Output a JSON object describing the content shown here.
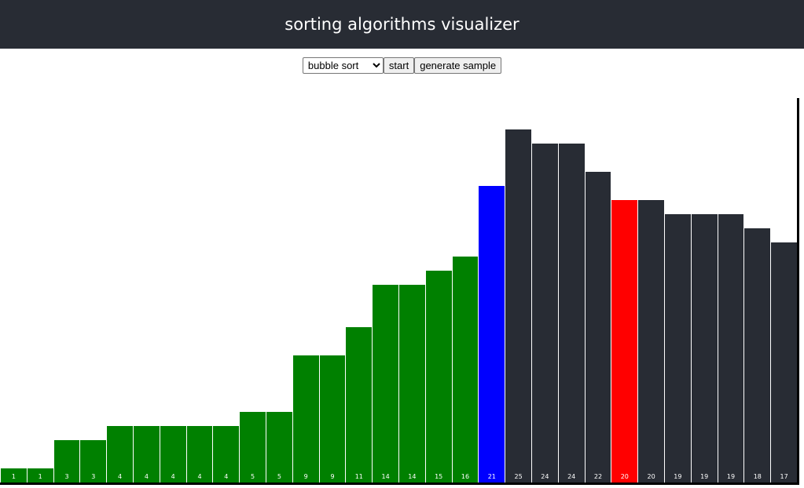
{
  "header": {
    "title": "sorting algorithms visualizer"
  },
  "controls": {
    "algorithm_selected": "bubble sort",
    "algorithm_options": [
      "bubble sort"
    ],
    "start_label": "start",
    "generate_label": "generate sample"
  },
  "colors": {
    "header_bg": "#282c34",
    "sorted": "#008000",
    "unsorted": "#282c34",
    "current": "#0000ff",
    "compare": "#ff0000"
  },
  "array": {
    "values": [
      1,
      1,
      3,
      3,
      4,
      4,
      4,
      4,
      4,
      5,
      5,
      9,
      9,
      11,
      14,
      14,
      15,
      16,
      21,
      25,
      24,
      24,
      22,
      20,
      20,
      19,
      19,
      19,
      18,
      17
    ],
    "states": [
      "sorted",
      "sorted",
      "sorted",
      "sorted",
      "sorted",
      "sorted",
      "sorted",
      "sorted",
      "sorted",
      "sorted",
      "sorted",
      "sorted",
      "sorted",
      "sorted",
      "sorted",
      "sorted",
      "sorted",
      "sorted",
      "current",
      "unsorted",
      "unsorted",
      "unsorted",
      "unsorted",
      "compare",
      "unsorted",
      "unsorted",
      "unsorted",
      "unsorted",
      "unsorted",
      "unsorted"
    ]
  }
}
